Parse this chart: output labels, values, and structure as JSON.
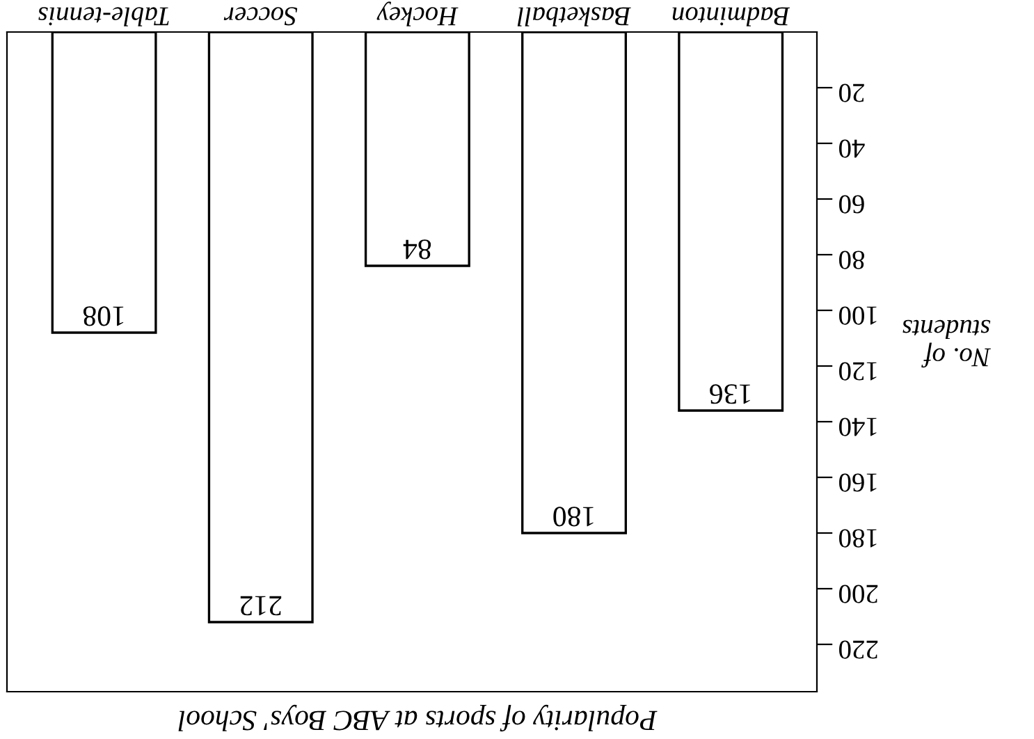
{
  "chart_data": {
    "type": "bar",
    "title": "Popularity of sports at ABC Boys' School",
    "ylabel": "No. of\nstudents",
    "categories": [
      "Table-tennis",
      "Soccer",
      "Hockey",
      "Basketball",
      "Badminton"
    ],
    "values": [
      108,
      212,
      84,
      180,
      136
    ],
    "color": "#ffffff",
    "ylim": [
      237,
      0
    ],
    "yticks": [
      20,
      40,
      60,
      80,
      100,
      120,
      140,
      160,
      180,
      200,
      220
    ],
    "data_labels": true,
    "grid": false
  }
}
